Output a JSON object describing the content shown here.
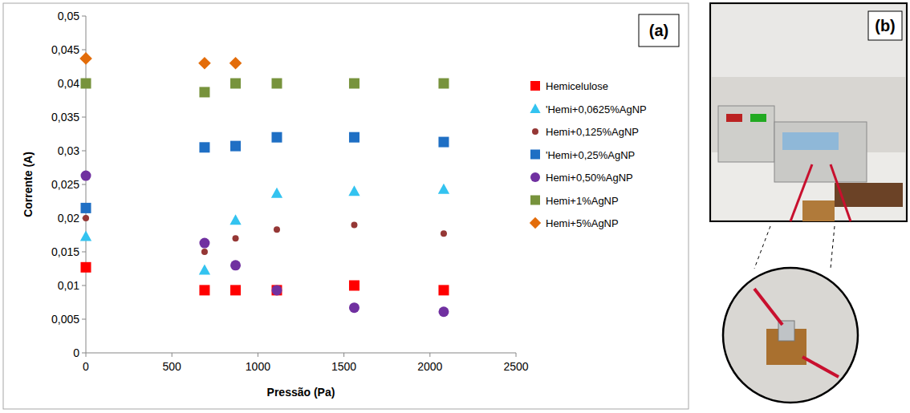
{
  "chart_data": {
    "type": "scatter",
    "x_label": "Pressão (Pa)",
    "y_label": "Corrente (A)",
    "x": [
      0,
      690,
      870,
      1110,
      1560,
      2080
    ],
    "xlim": [
      0,
      2500
    ],
    "xticks": [
      0,
      500,
      1000,
      1500,
      2000,
      2500
    ],
    "ylim": [
      0,
      0.05
    ],
    "yticks": [
      0,
      {
        "value": 0.005,
        "label": "0,005"
      },
      {
        "value": 0.01,
        "label": "0,01"
      },
      {
        "value": 0.015,
        "label": "0,015"
      },
      {
        "value": 0.02,
        "label": "0,02"
      },
      {
        "value": 0.025,
        "label": "0,025"
      },
      {
        "value": 0.03,
        "label": "0,03"
      },
      {
        "value": 0.035,
        "label": "0,035"
      },
      {
        "value": 0.04,
        "label": "0,04"
      },
      {
        "value": 0.045,
        "label": "0,045"
      },
      {
        "value": 0.05,
        "label": "0,05"
      }
    ],
    "grid": false,
    "legend": "right",
    "series": [
      {
        "name": "Hemicelulose",
        "color": "#ff0000",
        "marker": "square",
        "values": [
          0.0127,
          0.0093,
          0.0093,
          0.0093,
          0.01,
          0.0093
        ]
      },
      {
        "name": "'Hemi+0,0625%AgNP",
        "color": "#33c3f0",
        "marker": "triangle",
        "values": [
          0.0173,
          0.0123,
          0.0197,
          0.0237,
          0.024,
          0.0243
        ]
      },
      {
        "name": "Hemi+0,125%AgNP",
        "color": "#953735",
        "marker": "circle",
        "values": [
          0.02,
          0.015,
          0.017,
          0.0183,
          0.019,
          0.0177
        ]
      },
      {
        "name": "'Hemi+0,25%AgNP",
        "color": "#1f6fc4",
        "marker": "square",
        "values": [
          0.0215,
          0.0305,
          0.0307,
          0.032,
          0.032,
          0.0313
        ]
      },
      {
        "name": "Hemi+0,50%AgNP",
        "color": "#7030a0",
        "marker": "circle",
        "values": [
          0.0263,
          0.0163,
          0.013,
          0.0093,
          0.0067,
          0.0061
        ]
      },
      {
        "name": "Hemi+1%AgNP",
        "color": "#77933c",
        "marker": "square",
        "values": [
          0.04,
          0.0387,
          0.04,
          0.04,
          0.04,
          0.04
        ]
      },
      {
        "name": "Hemi+5%AgNP",
        "color": "#e36c09",
        "marker": "diamond",
        "values": [
          0.0437,
          0.043,
          0.043,
          null,
          null,
          null
        ]
      }
    ]
  },
  "panels": [
    {
      "label": "(a)"
    },
    {
      "label": "(b)"
    }
  ]
}
